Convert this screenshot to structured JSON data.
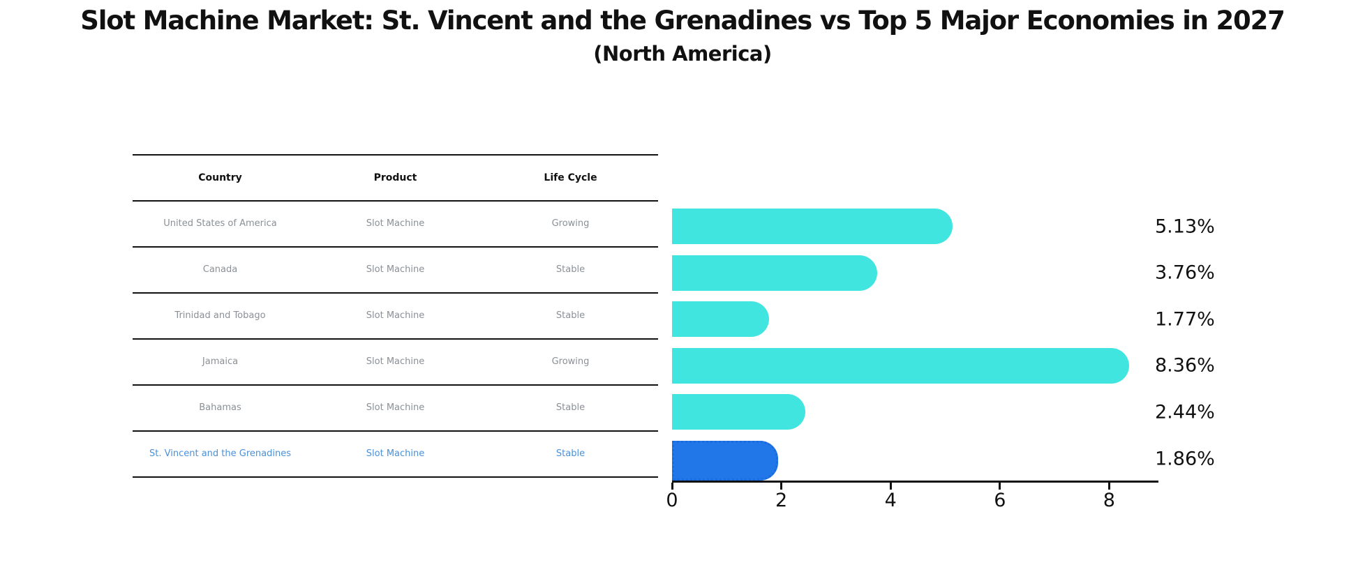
{
  "title": "Slot Machine Market: St. Vincent and the Grenadines vs Top 5 Major Economies in 2027",
  "subtitle": "(North America)",
  "table": {
    "headers": [
      "Country",
      "Product",
      "Life Cycle"
    ],
    "rows": [
      {
        "country": "United States of America",
        "product": "Slot Machine",
        "life_cycle": "Growing",
        "highlight": false
      },
      {
        "country": "Canada",
        "product": "Slot Machine",
        "life_cycle": "Stable",
        "highlight": false
      },
      {
        "country": "Trinidad and Tobago",
        "product": "Slot Machine",
        "life_cycle": "Stable",
        "highlight": false
      },
      {
        "country": "Jamaica",
        "product": "Slot Machine",
        "life_cycle": "Growing",
        "highlight": false
      },
      {
        "country": "Bahamas",
        "product": "Slot Machine",
        "life_cycle": "Stable",
        "highlight": false
      },
      {
        "country": "St. Vincent and the Grenadines",
        "product": "Slot Machine",
        "life_cycle": "Stable",
        "highlight": true
      }
    ]
  },
  "chart_data": {
    "type": "bar",
    "orientation": "horizontal",
    "title": "Slot Machine Market: St. Vincent and the Grenadines vs Top 5 Major Economies in 2027 (North America)",
    "categories": [
      "United States of America",
      "Canada",
      "Trinidad and Tobago",
      "Jamaica",
      "Bahamas",
      "St. Vincent and the Grenadines"
    ],
    "values": [
      5.13,
      3.76,
      1.77,
      8.36,
      2.44,
      1.86
    ],
    "value_labels": [
      "5.13%",
      "3.76%",
      "1.77%",
      "8.36%",
      "2.44%",
      "1.86%"
    ],
    "xticks": [
      0,
      2,
      4,
      6,
      8
    ],
    "xlim": [
      0,
      8.9
    ],
    "grid": false,
    "legend": "none",
    "highlight_index": 5
  },
  "colors": {
    "bar_cyan": "#40E5E0",
    "bar_blue": "#2176E8",
    "bar_blue_edge": "#1A6BE0",
    "highlight_text": "#4A90D9",
    "row_text": "#8A9096",
    "axis": "#111111"
  }
}
